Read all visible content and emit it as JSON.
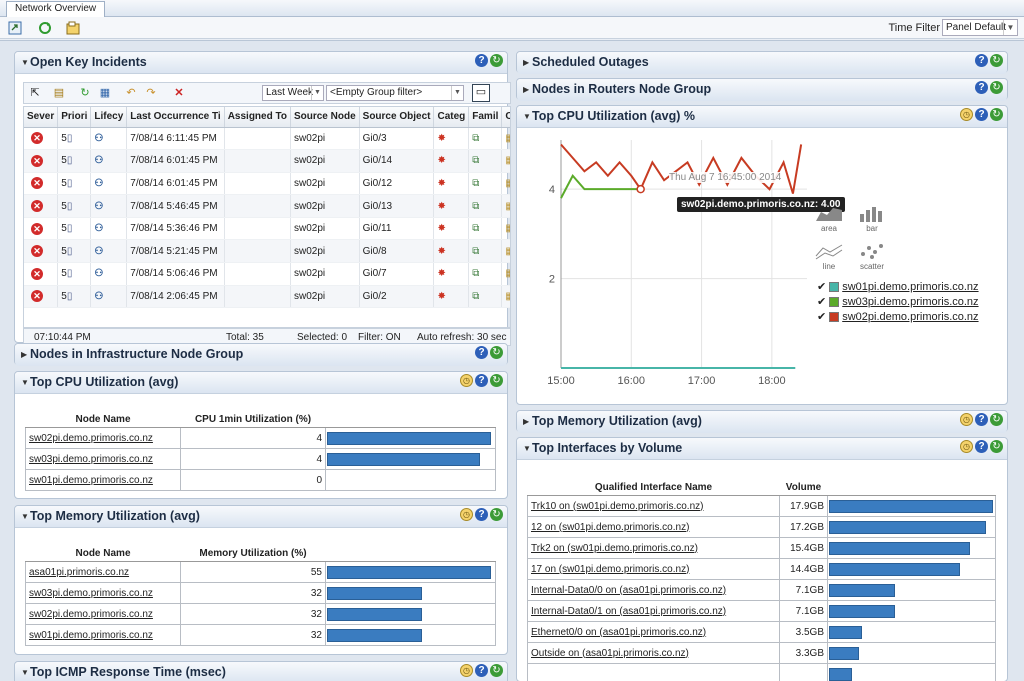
{
  "window": {
    "tab_title": "Network Overview"
  },
  "toolbar": {
    "time_filter_label": "Time Filter",
    "time_filter_value": "Panel Default"
  },
  "panels": {
    "open_key_incidents": "Open Key Incidents",
    "scheduled_outages": "Scheduled Outages",
    "nodes_routers": "Nodes in Routers Node Group",
    "top_cpu_chart": "Top CPU Utilization (avg) %",
    "nodes_infra": "Nodes in Infrastructure Node Group",
    "top_cpu_table": "Top CPU Utilization (avg)",
    "top_mem_table": "Top Memory Utilization (avg)",
    "top_mem_right": "Top Memory Utilization (avg)",
    "top_interfaces": "Top Interfaces by Volume",
    "top_icmp": "Top ICMP Response Time (msec)"
  },
  "incidents": {
    "range": "Last Week",
    "group_filter": "<Empty Group filter>",
    "columns": [
      "Sever",
      "Priori",
      "Lifecy",
      "Last Occurrence Ti",
      "Assigned To",
      "Source Node",
      "Source Object",
      "Categ",
      "Famil",
      "Or"
    ],
    "rows": [
      {
        "time": "7/08/14 6:11:45 PM",
        "node": "sw02pi",
        "object": "Gi0/3"
      },
      {
        "time": "7/08/14 6:01:45 PM",
        "node": "sw02pi",
        "object": "Gi0/14"
      },
      {
        "time": "7/08/14 6:01:45 PM",
        "node": "sw02pi",
        "object": "Gi0/12"
      },
      {
        "time": "7/08/14 5:46:45 PM",
        "node": "sw02pi",
        "object": "Gi0/13"
      },
      {
        "time": "7/08/14 5:36:46 PM",
        "node": "sw02pi",
        "object": "Gi0/11"
      },
      {
        "time": "7/08/14 5:21:45 PM",
        "node": "sw02pi",
        "object": "Gi0/8"
      },
      {
        "time": "7/08/14 5:06:46 PM",
        "node": "sw02pi",
        "object": "Gi0/7"
      },
      {
        "time": "7/08/14 2:06:45 PM",
        "node": "sw02pi",
        "object": "Gi0/2"
      }
    ],
    "priority_text": "5",
    "status": {
      "clock": "07:10:44 PM",
      "total": "Total: 35",
      "selected": "Selected: 0",
      "filter": "Filter: ON",
      "refresh": "Auto refresh: 30 sec"
    }
  },
  "cpu_table": {
    "headers": [
      "Node Name",
      "CPU 1min Utilization (%)"
    ],
    "rows": [
      {
        "name": "sw02pi.demo.primoris.co.nz",
        "value": "4",
        "pct": 1.0
      },
      {
        "name": "sw03pi.demo.primoris.co.nz",
        "value": "4",
        "pct": 0.93
      },
      {
        "name": "sw01pi.demo.primoris.co.nz",
        "value": "0",
        "pct": 0
      }
    ]
  },
  "mem_table": {
    "headers": [
      "Node Name",
      "Memory Utilization (%)"
    ],
    "rows": [
      {
        "name": "asa01pi.primoris.co.nz",
        "value": "55",
        "pct": 1.0
      },
      {
        "name": "sw03pi.demo.primoris.co.nz",
        "value": "32",
        "pct": 0.58
      },
      {
        "name": "sw02pi.demo.primoris.co.nz",
        "value": "32",
        "pct": 0.58
      },
      {
        "name": "sw01pi.demo.primoris.co.nz",
        "value": "32",
        "pct": 0.58
      }
    ]
  },
  "interfaces_table": {
    "headers": [
      "Qualified Interface Name",
      "Volume"
    ],
    "rows": [
      {
        "name": "Trk10 on (sw01pi.demo.primoris.co.nz)",
        "value": "17.9GB",
        "pct": 1.0
      },
      {
        "name": "12 on (sw01pi.demo.primoris.co.nz)",
        "value": "17.2GB",
        "pct": 0.96
      },
      {
        "name": "Trk2 on (sw01pi.demo.primoris.co.nz)",
        "value": "15.4GB",
        "pct": 0.86
      },
      {
        "name": "17 on (sw01pi.demo.primoris.co.nz)",
        "value": "14.4GB",
        "pct": 0.8
      },
      {
        "name": "Internal-Data0/0 on (asa01pi.primoris.co.nz)",
        "value": "7.1GB",
        "pct": 0.4
      },
      {
        "name": "Internal-Data0/1 on (asa01pi.primoris.co.nz)",
        "value": "7.1GB",
        "pct": 0.4
      },
      {
        "name": "Ethernet0/0 on (asa01pi.primoris.co.nz)",
        "value": "3.5GB",
        "pct": 0.2
      },
      {
        "name": "Outside on (asa01pi.primoris.co.nz)",
        "value": "3.3GB",
        "pct": 0.18
      },
      {
        "name": "",
        "value": "",
        "pct": 0.14
      }
    ]
  },
  "chart_data": {
    "type": "line",
    "title": "",
    "x_ticks": [
      "15:00",
      "16:00",
      "17:00",
      "18:00"
    ],
    "y_ticks": [
      "2",
      "4"
    ],
    "ylim": [
      0,
      5.1
    ],
    "xlim_minutes": [
      0,
      210
    ],
    "series": [
      {
        "name": "sw01pi.demo.primoris.co.nz",
        "color": "#47b5a8",
        "x": [
          0,
          200
        ],
        "y": [
          0,
          0
        ]
      },
      {
        "name": "sw03pi.demo.primoris.co.nz",
        "color": "#5bab2a",
        "x": [
          0,
          10,
          20,
          40,
          60,
          68
        ],
        "y": [
          3.8,
          4.3,
          4.0,
          4.0,
          4.0,
          4.0
        ]
      },
      {
        "name": "sw02pi.demo.primoris.co.nz",
        "color": "#c73b22",
        "x": [
          0,
          10,
          20,
          30,
          40,
          50,
          60,
          68,
          78,
          88,
          98,
          108,
          118,
          130,
          142,
          154,
          166,
          178,
          190,
          198,
          205
        ],
        "y": [
          5.0,
          4.7,
          4.4,
          4.6,
          4.3,
          4.6,
          4.3,
          4.0,
          4.6,
          4.2,
          4.4,
          4.6,
          4.1,
          4.7,
          4.1,
          4.7,
          4.3,
          4.0,
          4.6,
          3.9,
          5.0
        ]
      }
    ],
    "tooltip_time": "Thu Aug 7 16:45:00 2014",
    "tooltip_value": "sw02pi.demo.primoris.co.nz: 4.00",
    "chart_types": [
      "area",
      "bar",
      "line",
      "scatter"
    ]
  }
}
